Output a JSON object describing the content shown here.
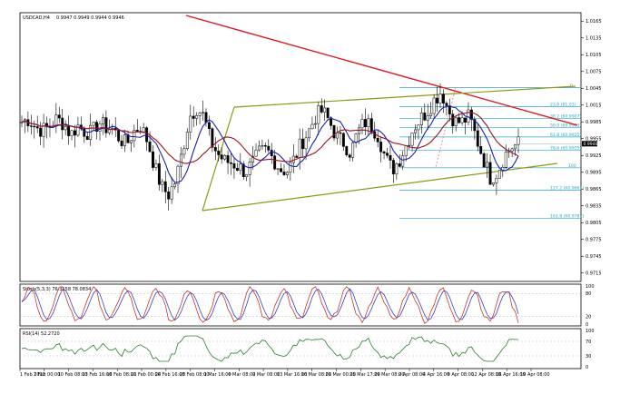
{
  "header": {
    "symbol": "USDCAD,H4",
    "quote": "0.9947 0.9949 0.9944 0.9946"
  },
  "price_axis": {
    "ticks": [
      "1.0165",
      "1.0135",
      "1.0105",
      "1.0075",
      "1.0045",
      "1.0015",
      "0.9985",
      "0.9955",
      "0.9925",
      "0.9895",
      "0.9865",
      "0.9835",
      "0.9805",
      "0.9775",
      "0.9745",
      "0.9715"
    ],
    "current": "0.9946",
    "range": [
      0.97,
      1.018
    ]
  },
  "fib_labels": [
    "0",
    "23.6 (61.03)",
    "38.2 (60.9907)",
    "50.0 (60.9963)",
    "61.8 (60.9925)",
    "78.6 (60.9925)",
    "100",
    "127.2 (60.9661)",
    "161.8 (60.9787)"
  ],
  "fib_levels": [
    1.0046,
    1.0012,
    0.9991,
    0.9975,
    0.9958,
    0.9934,
    0.9903,
    0.9863,
    0.9813
  ],
  "stoch": {
    "label": "Stoch(5,3,3) 76.3158 78.0834",
    "ticks": [
      "100",
      "80",
      "20",
      "0"
    ]
  },
  "rsi": {
    "label": "RSI(14) 52.2720",
    "ticks": [
      "100",
      "70",
      "30",
      "0"
    ]
  },
  "time_axis": [
    "1 Feb 2012",
    "7 Feb 00:00",
    "10 Feb 08:00",
    "13 Feb 16:00",
    "16 Feb 08:00",
    "21 Feb 00:00",
    "24 Feb 16:00",
    "28 Feb 08:00",
    "1 Mar 16:00",
    "6 Mar 08:00",
    "9 Mar 08:00",
    "13 Mar 16:00",
    "16 Mar 08:00",
    "21 Mar 00:00",
    "25 Mar 17:00",
    "29 Mar 08:00",
    "2 Apr 08:00",
    "4 Apr 16:00",
    "9 Apr 08:00",
    "12 Apr 08:00",
    "16 Apr 16:00",
    "19 Apr 08:00"
  ],
  "colors": {
    "resistance_line": "#e0191f",
    "channel": "#8c9a12",
    "ma_fast": "#1a1fb0",
    "ma_slow": "#9b1420",
    "fib": "#26a9c7",
    "candle": "#000000",
    "stoch_main": "#c0392b",
    "stoch_signal": "#3b3fbf",
    "rsi": "#2f7d2f"
  },
  "chart_data": {
    "type": "candlestick",
    "series_names": [
      "price",
      "ma_fast",
      "ma_slow"
    ],
    "anchors": [
      0.9985,
      0.999,
      0.9975,
      0.997,
      0.9978,
      0.999,
      0.9982,
      0.9962,
      0.9978,
      0.9968,
      0.9965,
      0.9985,
      0.9975,
      0.9972,
      0.9955,
      0.9945,
      0.9968,
      0.9978,
      0.995,
      0.9905,
      0.9868,
      0.9855,
      0.988,
      0.9935,
      0.9995,
      1.001,
      0.9995,
      0.995,
      0.9928,
      0.9915,
      0.9912,
      0.9905,
      0.9895,
      0.9912,
      0.993,
      0.9935,
      0.9918,
      0.99,
      0.9898,
      0.992,
      0.9948,
      0.9968,
      0.9995,
      1.0005,
      0.9985,
      0.9958,
      0.9948,
      0.993,
      0.9965,
      0.9985,
      0.9978,
      0.996,
      0.992,
      0.99,
      0.9918,
      0.9945,
      0.9975,
      0.999,
      1.0005,
      1.0025,
      1.004,
      1.0005,
      0.9985,
      0.9985,
      0.9995,
      0.9955,
      0.992,
      0.9885,
      0.9895,
      0.9925,
      0.994,
      0.9946
    ]
  }
}
